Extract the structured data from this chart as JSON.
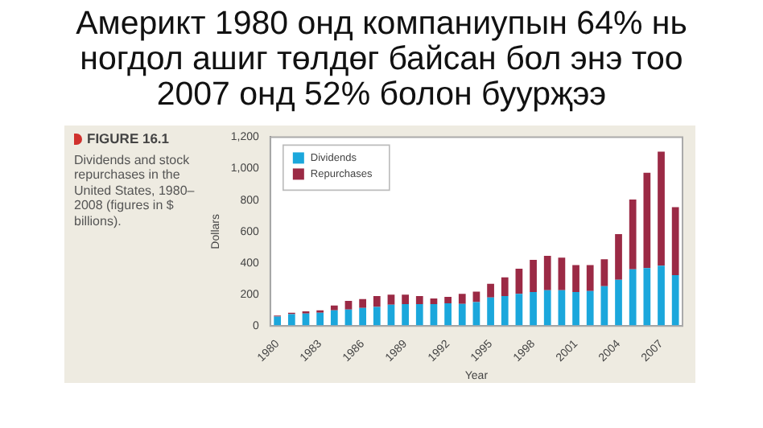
{
  "chart_data": {
    "type": "bar",
    "title": "Америкт 1980 онд компаниупын 64% нь ногдол ашиг төлдөг байсан бол энэ тоо 2007 онд 52% болон буурҗээ",
    "annotations": [
      "FIGURE 16.1",
      "Dividends and stock repurchases in the United States, 1980–2008 (figures in $ billions)."
    ],
    "xlabel": "Year",
    "ylabel": "Dollars",
    "categories": [
      "1980",
      null,
      null,
      "1983",
      null,
      null,
      "1986",
      null,
      null,
      "1989",
      null,
      null,
      "1992",
      null,
      null,
      "1995",
      null,
      null,
      "1998",
      null,
      null,
      "2001",
      null,
      null,
      "2004",
      null,
      null,
      "2007",
      null
    ],
    "stacked": true,
    "series": [
      {
        "name": "Dividends",
        "color": "#1ba7dc",
        "values": [
          60,
          75,
          80,
          85,
          100,
          105,
          115,
          122,
          135,
          140,
          140,
          140,
          145,
          141,
          152,
          182,
          190,
          204,
          216,
          227,
          227,
          216,
          223,
          253,
          294,
          361,
          368,
          383,
          323
        ]
      },
      {
        "name": "Repurchases",
        "color": "#9b2a45",
        "values": [
          7,
          10,
          13,
          15,
          30,
          55,
          56,
          68,
          65,
          60,
          50,
          35,
          40,
          63,
          67,
          86,
          119,
          160,
          204,
          219,
          208,
          171,
          164,
          171,
          290,
          442,
          606,
          725,
          432
        ]
      }
    ],
    "ylim": [
      0,
      1200
    ],
    "yticks": [
      0,
      {
        "value": 200,
        "label": "200"
      },
      400,
      600,
      800,
      {
        "value": 1000,
        "label": "1,000"
      },
      {
        "value": 1200,
        "label": "1,200"
      }
    ],
    "legend": "top left"
  }
}
